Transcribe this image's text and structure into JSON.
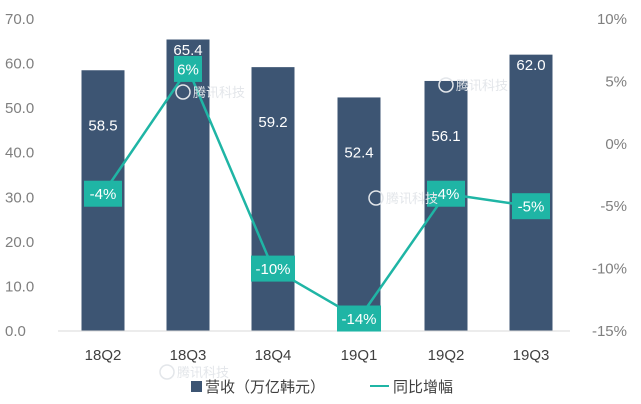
{
  "chart_data": {
    "type": "bar",
    "categories": [
      "18Q2",
      "18Q3",
      "18Q4",
      "19Q1",
      "19Q2",
      "19Q3"
    ],
    "series": [
      {
        "name": "营收（万亿韩元）",
        "type": "bar",
        "axis": "left",
        "values": [
          58.5,
          65.4,
          59.2,
          52.4,
          56.1,
          62.0
        ],
        "labels": [
          "58.5",
          "65.4",
          "59.2",
          "52.4",
          "56.1",
          "62.0"
        ]
      },
      {
        "name": "同比增幅",
        "type": "line",
        "axis": "right",
        "values": [
          -4,
          6,
          -10,
          -14,
          -4,
          -5
        ],
        "labels": [
          "-4%",
          "6%",
          "-10%",
          "-14%",
          "-4%",
          "-5%"
        ]
      }
    ],
    "ylim": [
      0,
      70
    ],
    "y_ticks": [
      "0.0",
      "10.0",
      "20.0",
      "30.0",
      "40.0",
      "50.0",
      "60.0",
      "70.0"
    ],
    "y2lim": [
      -15,
      10
    ],
    "y2_ticks": [
      "-15%",
      "-10%",
      "-5%",
      "0%",
      "5%",
      "10%"
    ],
    "colors": {
      "bar": "#3d5573",
      "line": "#1fb5a5",
      "label_box": "#1fb5a5",
      "axis_text": "#7f7f7f"
    },
    "legend_position": "bottom",
    "grid": false
  },
  "watermark": {
    "text": "腾讯科技"
  }
}
